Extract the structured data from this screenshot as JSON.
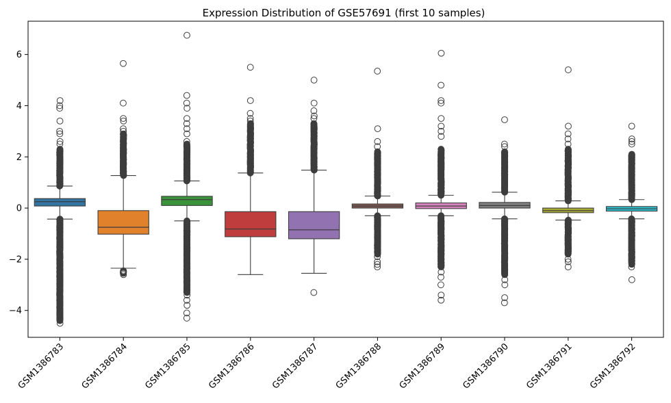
{
  "chart_data": {
    "type": "box",
    "title": "Expression Distribution of GSE57691 (first 10 samples)",
    "xlabel": "",
    "ylabel": "",
    "ylim": [
      -5.05,
      7.3
    ],
    "yticks": [
      -4,
      -2,
      0,
      2,
      4,
      6
    ],
    "grid": false,
    "legend": "none",
    "categories": [
      "GSM1386783",
      "GSM1386784",
      "GSM1386785",
      "GSM1386786",
      "GSM1386787",
      "GSM1386788",
      "GSM1386789",
      "GSM1386790",
      "GSM1386791",
      "GSM1386792"
    ],
    "boxes": [
      {
        "name": "GSM1386783",
        "color": "#3274a1",
        "q1": 0.08,
        "median": 0.25,
        "q3": 0.37,
        "whisker_low": -0.43,
        "whisker_high": 0.86,
        "outlier_low_range": [
          -4.4,
          -0.43
        ],
        "outlier_high_range": [
          0.86,
          2.3
        ],
        "outliers_extra": [
          -4.5,
          -4.2,
          -4.0,
          -3.9,
          -3.5,
          -3.3,
          -3.0,
          2.5,
          2.6,
          2.9,
          3.0,
          3.4,
          3.9,
          4.0,
          4.2
        ]
      },
      {
        "name": "GSM1386784",
        "color": "#e1812c",
        "q1": -1.02,
        "median": -0.75,
        "q3": -0.1,
        "whisker_low": -2.35,
        "whisker_high": 1.27,
        "outlier_low_range": [
          -2.55,
          -2.45
        ],
        "outlier_high_range": [
          1.27,
          2.9
        ],
        "outliers_extra": [
          -2.6,
          -2.5,
          3.0,
          3.1,
          3.4,
          3.5,
          4.1,
          5.65
        ]
      },
      {
        "name": "GSM1386785",
        "color": "#3a923a",
        "q1": 0.1,
        "median": 0.33,
        "q3": 0.46,
        "whisker_low": -0.5,
        "whisker_high": 1.06,
        "outlier_low_range": [
          -3.3,
          -0.5
        ],
        "outlier_high_range": [
          1.06,
          2.5
        ],
        "outliers_extra": [
          -4.3,
          -4.1,
          -3.8,
          -3.6,
          -3.4,
          2.6,
          2.9,
          3.1,
          3.3,
          3.5,
          3.9,
          4.1,
          4.4,
          6.75
        ]
      },
      {
        "name": "GSM1386786",
        "color": "#c03d3e",
        "q1": -1.12,
        "median": -0.82,
        "q3": -0.14,
        "whisker_low": -2.6,
        "whisker_high": 1.37,
        "outlier_low_range": [],
        "outlier_high_range": [
          1.37,
          3.3
        ],
        "outliers_extra": [
          3.4,
          3.5,
          3.7,
          4.2,
          5.5
        ]
      },
      {
        "name": "GSM1386787",
        "color": "#9372b2",
        "q1": -1.2,
        "median": -0.85,
        "q3": -0.14,
        "whisker_low": -2.55,
        "whisker_high": 1.48,
        "outlier_low_range": [],
        "outlier_high_range": [
          1.48,
          3.3
        ],
        "outliers_extra": [
          -3.3,
          3.5,
          3.6,
          3.8,
          4.1,
          5.0
        ]
      },
      {
        "name": "GSM1386788",
        "color": "#845b53",
        "q1": 0.0,
        "median": 0.08,
        "q3": 0.16,
        "whisker_low": -0.3,
        "whisker_high": 0.47,
        "outlier_low_range": [
          -1.8,
          -0.3
        ],
        "outlier_high_range": [
          0.47,
          2.2
        ],
        "outliers_extra": [
          -2.3,
          -2.2,
          -2.1,
          -1.9,
          2.4,
          2.6,
          3.1,
          5.35
        ]
      },
      {
        "name": "GSM1386789",
        "color": "#d684bd",
        "q1": -0.02,
        "median": 0.08,
        "q3": 0.2,
        "whisker_low": -0.3,
        "whisker_high": 0.5,
        "outlier_low_range": [
          -2.3,
          -0.3
        ],
        "outlier_high_range": [
          0.5,
          2.3
        ],
        "outliers_extra": [
          -3.6,
          -3.4,
          -3.0,
          -2.7,
          -2.5,
          2.8,
          3.0,
          3.2,
          3.5,
          4.1,
          4.2,
          4.8,
          6.05
        ]
      },
      {
        "name": "GSM1386790",
        "color": "#7f7f7f",
        "q1": 0.0,
        "median": 0.1,
        "q3": 0.22,
        "whisker_low": -0.42,
        "whisker_high": 0.62,
        "outlier_low_range": [
          -2.6,
          -0.42
        ],
        "outlier_high_range": [
          0.62,
          2.2
        ],
        "outliers_extra": [
          -3.7,
          -3.5,
          -3.0,
          -2.8,
          2.4,
          2.5,
          3.45
        ]
      },
      {
        "name": "GSM1386791",
        "color": "#a9aa35",
        "q1": -0.18,
        "median": -0.1,
        "q3": 0.0,
        "whisker_low": -0.47,
        "whisker_high": 0.28,
        "outlier_low_range": [
          -1.8,
          -0.47
        ],
        "outlier_high_range": [
          0.28,
          2.3
        ],
        "outliers_extra": [
          -2.3,
          -2.1,
          -2.0,
          2.5,
          2.7,
          2.9,
          3.2,
          5.4
        ]
      },
      {
        "name": "GSM1386792",
        "color": "#2ebccd",
        "q1": -0.12,
        "median": -0.03,
        "q3": 0.06,
        "whisker_low": -0.42,
        "whisker_high": 0.33,
        "outlier_low_range": [
          -2.2,
          -0.42
        ],
        "outlier_high_range": [
          0.33,
          2.1
        ],
        "outliers_extra": [
          -2.8,
          -2.3,
          2.5,
          2.6,
          2.7,
          3.2
        ]
      }
    ]
  }
}
